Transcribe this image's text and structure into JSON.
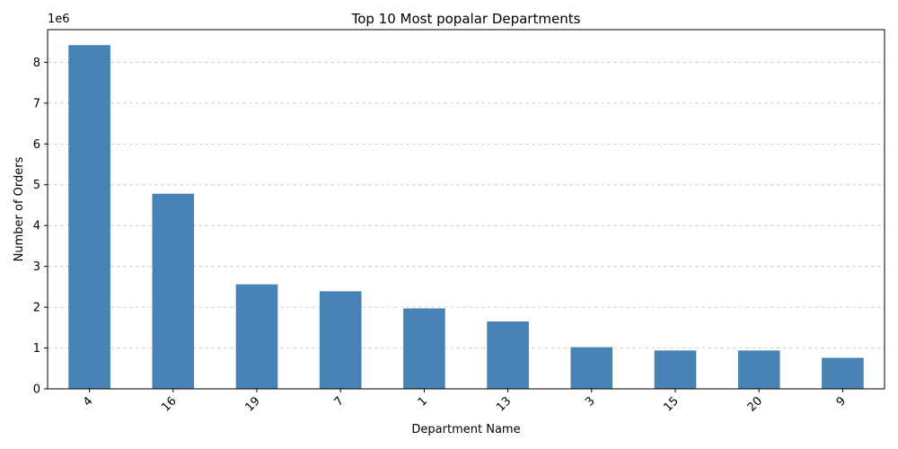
{
  "chart_data": {
    "type": "bar",
    "title": "Top 10 Most popalar Departments",
    "xlabel": "Department Name",
    "ylabel": "Number of Orders",
    "y_multiplier_label": "1e6",
    "categories": [
      "4",
      "16",
      "19",
      "7",
      "1",
      "13",
      "3",
      "15",
      "20",
      "9"
    ],
    "values": [
      8.42,
      4.78,
      2.56,
      2.39,
      1.97,
      1.65,
      1.02,
      0.94,
      0.94,
      0.76
    ],
    "ylim": [
      0,
      8.8
    ],
    "yticks": [
      "0",
      "1",
      "2",
      "3",
      "4",
      "5",
      "6",
      "7",
      "8"
    ],
    "grid": true,
    "bar_color": "#4682b4",
    "grid_color": "#cccccc"
  }
}
